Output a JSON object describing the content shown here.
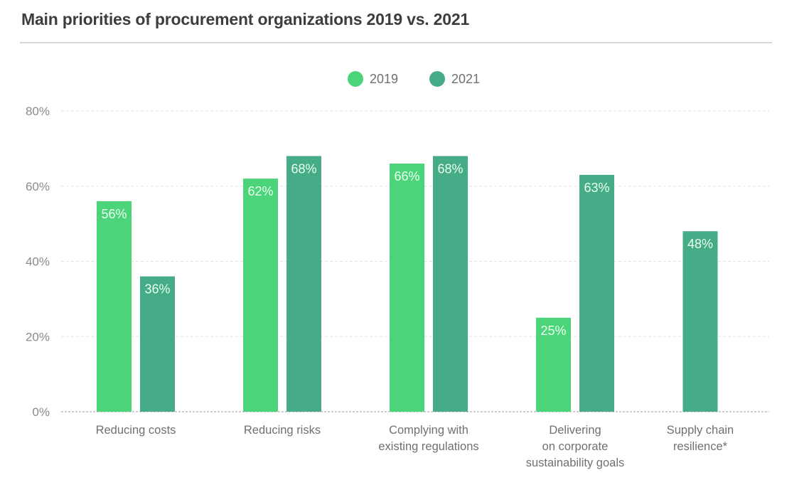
{
  "chart_data": {
    "type": "bar",
    "title": "Main priorities of procurement organizations 2019 vs. 2021",
    "xlabel": "",
    "ylabel": "",
    "ylim": [
      0,
      80
    ],
    "yticks": [
      0,
      20,
      40,
      60,
      80
    ],
    "ytick_labels": [
      "0%",
      "20%",
      "40%",
      "60%",
      "80%"
    ],
    "grid": true,
    "legend_position": "top-center",
    "categories": [
      [
        "Reducing costs"
      ],
      [
        "Reducing risks"
      ],
      [
        "Complying with",
        "existing regulations"
      ],
      [
        "Delivering",
        "on corporate",
        "sustainability goals"
      ],
      [
        "Supply chain",
        "resilience*"
      ]
    ],
    "series": [
      {
        "name": "2019",
        "color": "#4cd47a",
        "values": [
          56,
          62,
          66,
          25,
          null
        ],
        "labels": [
          "56%",
          "62%",
          "66%",
          "25%",
          null
        ]
      },
      {
        "name": "2021",
        "color": "#45ac87",
        "values": [
          36,
          68,
          68,
          63,
          48
        ],
        "labels": [
          "36%",
          "68%",
          "68%",
          "63%",
          "48%"
        ]
      }
    ]
  }
}
